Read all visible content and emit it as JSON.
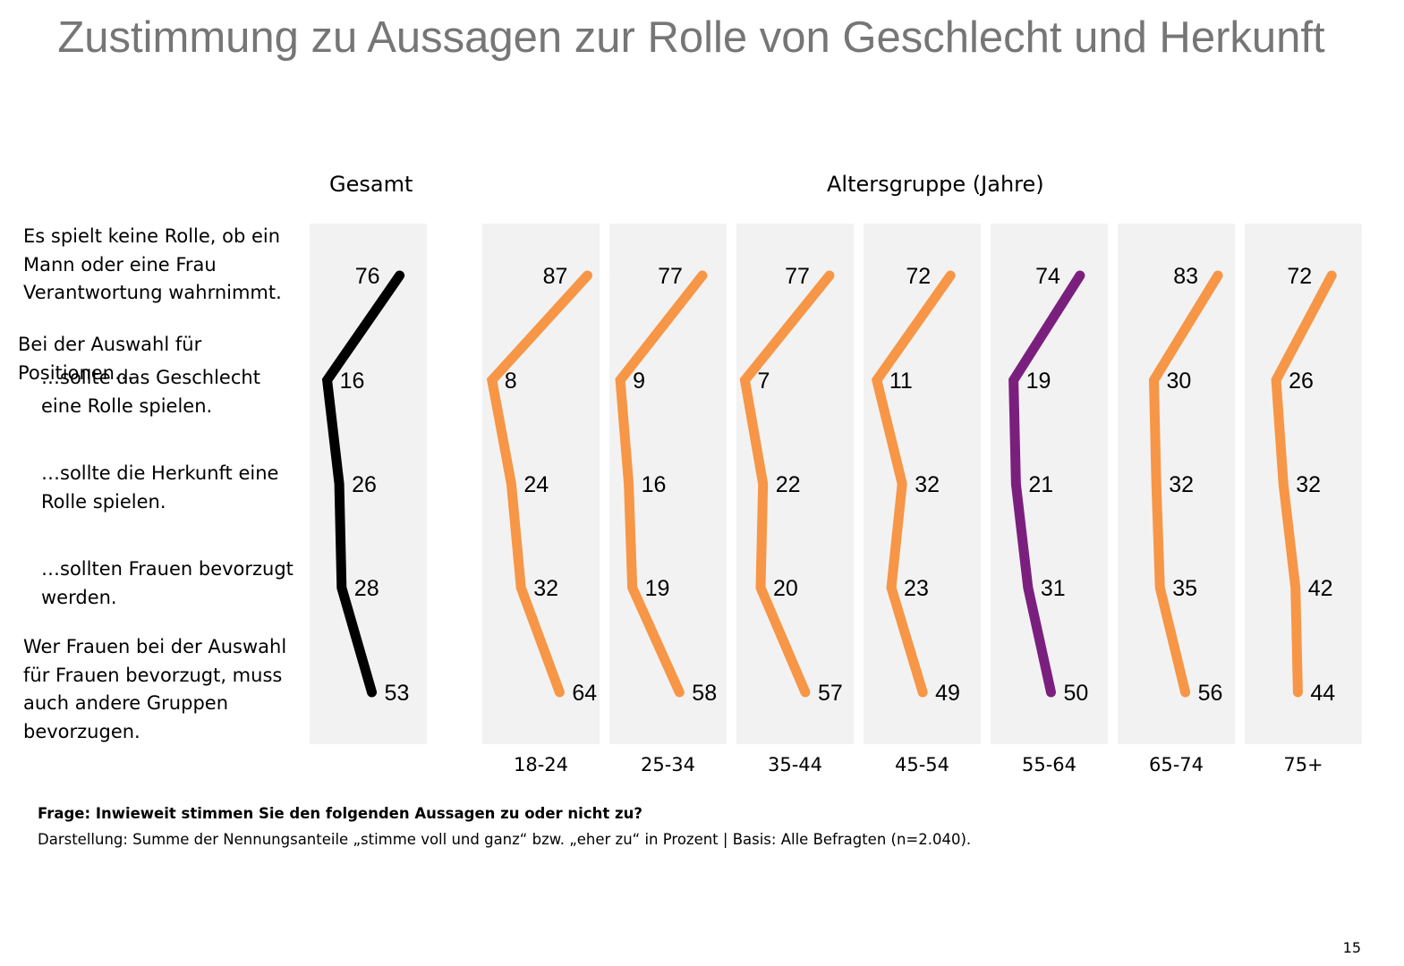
{
  "title": "Zustimmung zu Aussagen zur Rolle von Geschlecht und Herkunft",
  "page_number": "15",
  "footer": {
    "question": "Frage: Inwieweit stimmen Sie den folgenden Aussagen zu oder nicht zu?",
    "note": "Darstellung: Summe der Nennungsanteile „stimme voll und ganz“ bzw. „eher zu“ in Prozent | Basis: Alle Befragten (n=2.040)."
  },
  "statements": [
    "Es spielt keine Rolle, ob ein Mann oder eine Frau Verantwortung wahrnimmt.",
    "Bei der Auswahl für Positionen…",
    "…sollte das Geschlecht eine Rolle spielen.",
    "…sollte die Herkunft eine Rolle spielen.",
    "…sollten Frauen bevorzugt werden.",
    "Wer Frauen bei der Auswahl für Frauen bevorzugt, muss auch andere Gruppen bevorzugen."
  ],
  "statement_lines": {
    "s1": [
      "Es spielt keine Rolle, ob ein",
      "Mann oder eine Frau",
      "Verantwortung wahrnimmt."
    ],
    "intro": [
      "Bei der Auswahl für",
      "Positionen…"
    ],
    "s2": [
      "…sollte das Geschlecht",
      "eine Rolle spielen."
    ],
    "s3": [
      "…sollte die Herkunft eine",
      "Rolle spielen."
    ],
    "s4": [
      "…sollten Frauen bevorzugt",
      "werden."
    ],
    "s5": [
      "Wer Frauen bei der Auswahl",
      "für Frauen bevorzugt, muss",
      "auch andere Gruppen",
      "bevorzugen."
    ]
  },
  "colors": {
    "gesamt": "#000000",
    "age": "#F79646",
    "highlight": "#7B1F7E",
    "panel_bg": "#F2F2F2",
    "title": "#767676"
  },
  "chart_data": {
    "type": "line",
    "title": "Zustimmung zu Aussagen zur Rolle von Geschlecht und Herkunft",
    "orientation": "vertical-profile",
    "group_headers": {
      "total": "Gesamt",
      "age": "Altersgruppe (Jahre)"
    },
    "unit": "Prozent",
    "xlim": [
      0,
      100
    ],
    "categories": [
      "Es spielt keine Rolle, ob ein Mann oder eine Frau Verantwortung wahrnimmt.",
      "…sollte das Geschlecht eine Rolle spielen.",
      "…sollte die Herkunft eine Rolle spielen.",
      "…sollten Frauen bevorzugt werden.",
      "Wer Frauen bei der Auswahl für Frauen bevorzugt, muss auch andere Gruppen bevorzugen."
    ],
    "series": [
      {
        "name": "Gesamt",
        "label": "",
        "color": "#000000",
        "values": [
          76,
          16,
          26,
          28,
          53
        ]
      },
      {
        "name": "18-24",
        "label": "18-24",
        "color": "#F79646",
        "values": [
          87,
          8,
          24,
          32,
          64
        ]
      },
      {
        "name": "25-34",
        "label": "25-34",
        "color": "#F79646",
        "values": [
          77,
          9,
          16,
          19,
          58
        ]
      },
      {
        "name": "35-44",
        "label": "35-44",
        "color": "#F79646",
        "values": [
          77,
          7,
          22,
          20,
          57
        ]
      },
      {
        "name": "45-54",
        "label": "45-54",
        "color": "#F79646",
        "values": [
          72,
          11,
          32,
          23,
          49
        ]
      },
      {
        "name": "55-64",
        "label": "55-64",
        "color": "#7B1F7E",
        "values": [
          74,
          19,
          21,
          31,
          50
        ]
      },
      {
        "name": "65-74",
        "label": "65-74",
        "color": "#F79646",
        "values": [
          83,
          30,
          32,
          35,
          56
        ]
      },
      {
        "name": "75+",
        "label": "75+",
        "color": "#F79646",
        "values": [
          72,
          26,
          32,
          42,
          44
        ]
      }
    ]
  }
}
